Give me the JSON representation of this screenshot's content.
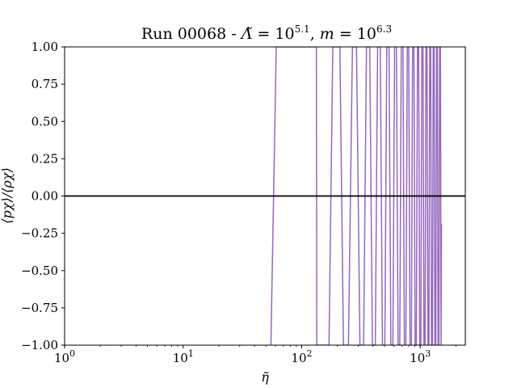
{
  "chart_data": {
    "type": "line",
    "title": "Run 00068 - Λ̃ = 10^5.1, m = 10^6.3",
    "title_parts": {
      "prefix": "Run 00068 - ",
      "lambda_sym": "Λ̃",
      "eq1": " = 10",
      "exp1": "5.1",
      "sep": ", ",
      "m_sym": "m",
      "eq2": " = 10",
      "exp2": "6.3"
    },
    "xlabel": "η̃",
    "ylabel": "⟨p_χ⟩/⟨ρ_χ⟩",
    "ylabel_text": "⟨pχ⟩/⟨ρχ⟩",
    "xscale": "log",
    "xlim": [
      1,
      2400
    ],
    "ylim": [
      -1.0,
      1.0
    ],
    "x_ticks": [
      1,
      10,
      100,
      1000
    ],
    "x_tick_labels": [
      {
        "base": "10",
        "exp": "0"
      },
      {
        "base": "10",
        "exp": "1"
      },
      {
        "base": "10",
        "exp": "2"
      },
      {
        "base": "10",
        "exp": "3"
      }
    ],
    "y_ticks": [
      -1.0,
      -0.75,
      -0.5,
      -0.25,
      0.0,
      0.25,
      0.5,
      0.75,
      1.0
    ],
    "y_tick_labels": [
      "−1.00",
      "−0.75",
      "−0.50",
      "−0.25",
      "0.00",
      "0.25",
      "0.50",
      "0.75",
      "1.00"
    ],
    "reference_line": {
      "y": 0.0,
      "color": "#000000"
    },
    "grid": false,
    "series_color": "#9467bd",
    "series": [
      {
        "x": [
          55,
          61,
          133,
          134,
          170,
          183,
          210,
          225,
          248,
          268,
          290,
          310,
          333,
          352,
          375,
          395,
          418,
          437,
          460,
          480,
          503,
          522,
          545,
          565,
          588,
          608,
          630,
          650,
          672,
          692,
          715,
          735,
          757,
          778,
          800,
          820,
          842,
          862,
          885,
          905,
          927,
          948,
          970,
          990,
          1012,
          1032,
          1055,
          1075,
          1098,
          1118,
          1140,
          1160,
          1183,
          1203,
          1225,
          1245,
          1268,
          1288,
          1310,
          1330,
          1353,
          1373,
          1395,
          1415,
          1438,
          1458,
          1480,
          1500,
          1510
        ],
        "y": [
          -1.0,
          1.0,
          1.0,
          -1.0,
          -1.0,
          1.0,
          1.0,
          -1.0,
          -1.0,
          1.0,
          1.0,
          -1.0,
          -1.0,
          1.0,
          1.0,
          -1.0,
          -1.0,
          1.0,
          1.0,
          -1.0,
          -1.0,
          1.0,
          1.0,
          -1.0,
          -1.0,
          1.0,
          1.0,
          -1.0,
          -1.0,
          1.0,
          1.0,
          -1.0,
          -1.0,
          1.0,
          1.0,
          -1.0,
          -1.0,
          1.0,
          1.0,
          -1.0,
          -1.0,
          1.0,
          1.0,
          -1.0,
          -1.0,
          1.0,
          1.0,
          -1.0,
          -1.0,
          1.0,
          1.0,
          -1.0,
          -1.0,
          1.0,
          1.0,
          -1.0,
          -1.0,
          1.0,
          1.0,
          -1.0,
          -1.0,
          1.0,
          1.0,
          -1.0,
          -1.0,
          1.0,
          1.0,
          -1.0,
          -0.19
        ]
      }
    ]
  }
}
